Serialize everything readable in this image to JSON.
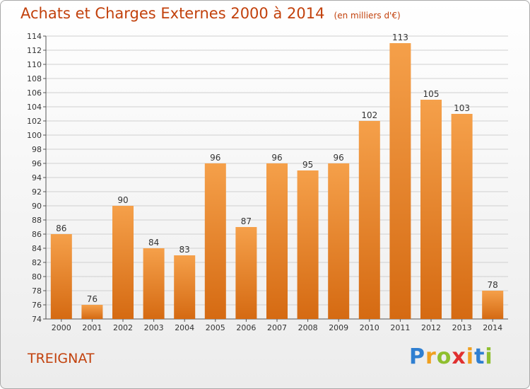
{
  "chart_data": {
    "type": "bar",
    "title": "Achats et Charges Externes 2000 à 2014",
    "unit_label": "(en milliers d'€)",
    "categories": [
      "2000",
      "2001",
      "2002",
      "2003",
      "2004",
      "2005",
      "2006",
      "2007",
      "2008",
      "2009",
      "2010",
      "2011",
      "2012",
      "2013",
      "2014"
    ],
    "values": [
      86,
      76,
      90,
      84,
      83,
      96,
      87,
      96,
      95,
      96,
      102,
      113,
      105,
      103,
      78
    ],
    "xlabel": "",
    "ylabel": "",
    "ylim": [
      74,
      114
    ],
    "yticks": [
      74,
      76,
      78,
      80,
      82,
      84,
      86,
      88,
      90,
      92,
      94,
      96,
      98,
      100,
      102,
      104,
      106,
      108,
      110,
      112,
      114
    ],
    "grid": true,
    "bar_color_top": "#f5a04a",
    "bar_color_bottom": "#d56a12"
  },
  "location": "TREIGNAT",
  "logo": {
    "letters": [
      "P",
      "r",
      "o",
      "x",
      "i",
      "t",
      "i"
    ],
    "colors": [
      "#2f7fd1",
      "#f0a020",
      "#8fbf2f",
      "#e03030",
      "#f0a020",
      "#2f7fd1",
      "#8fbf2f"
    ]
  },
  "colors": {
    "accent": "#c2410c"
  }
}
